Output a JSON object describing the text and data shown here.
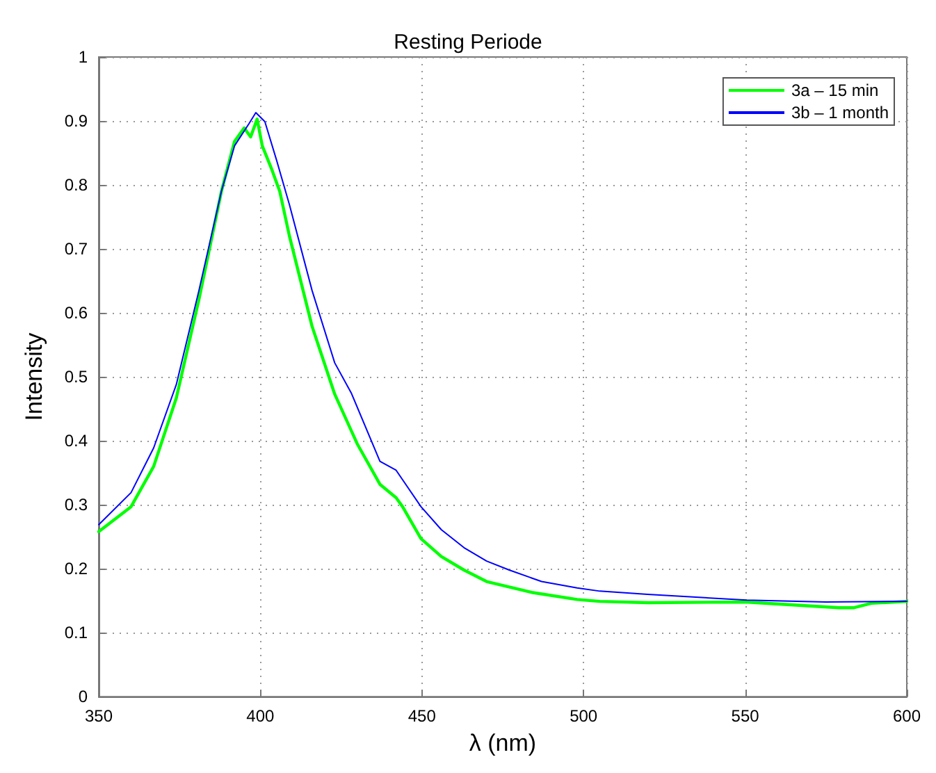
{
  "chart_data": {
    "type": "line",
    "title": "Resting Periode",
    "xlabel": "λ (nm)",
    "ylabel": "Intensity",
    "xlim": [
      350,
      600
    ],
    "xticks": [
      350,
      400,
      450,
      500,
      550,
      600
    ],
    "ylim": [
      0,
      1
    ],
    "yticks": [
      0,
      0.1,
      0.2,
      0.3,
      0.4,
      0.5,
      0.6,
      0.7,
      0.8,
      0.9,
      1
    ],
    "grid": true,
    "legend": "top right",
    "marker": "none",
    "line_style": "solid",
    "series": [
      {
        "name": "3a – 15 min",
        "color": "#00ff00",
        "x": [
          350,
          360,
          367,
          374,
          381,
          388,
          392,
          395,
          397,
          399,
          400.6,
          403.4,
          406,
          409,
          416,
          423,
          430,
          437,
          442,
          444,
          449.7,
          456,
          463,
          470,
          484,
          498,
          505,
          520,
          550,
          579,
          583.5,
          589,
          600
        ],
        "values": [
          0.258,
          0.297,
          0.36,
          0.467,
          0.621,
          0.791,
          0.868,
          0.889,
          0.875,
          0.903,
          0.861,
          0.826,
          0.79,
          0.72,
          0.579,
          0.473,
          0.395,
          0.332,
          0.311,
          0.297,
          0.247,
          0.219,
          0.198,
          0.18,
          0.163,
          0.152,
          0.149,
          0.147,
          0.148,
          0.139,
          0.139,
          0.146,
          0.149
        ]
      },
      {
        "name": "3b – 1 month",
        "color": "#0000ff",
        "x": [
          350,
          360,
          367,
          374,
          381,
          388,
          392,
          396.5,
          398.6,
          401.4,
          405,
          409,
          416,
          423,
          428.2,
          437,
          442,
          449.7,
          456,
          463,
          470,
          477,
          487,
          498,
          505,
          519.8,
          550.4,
          575,
          600
        ],
        "values": [
          0.269,
          0.319,
          0.389,
          0.488,
          0.635,
          0.791,
          0.861,
          0.896,
          0.913,
          0.899,
          0.839,
          0.769,
          0.635,
          0.522,
          0.474,
          0.368,
          0.354,
          0.297,
          0.261,
          0.233,
          0.212,
          0.198,
          0.18,
          0.17,
          0.165,
          0.16,
          0.151,
          0.148,
          0.149
        ]
      }
    ]
  }
}
